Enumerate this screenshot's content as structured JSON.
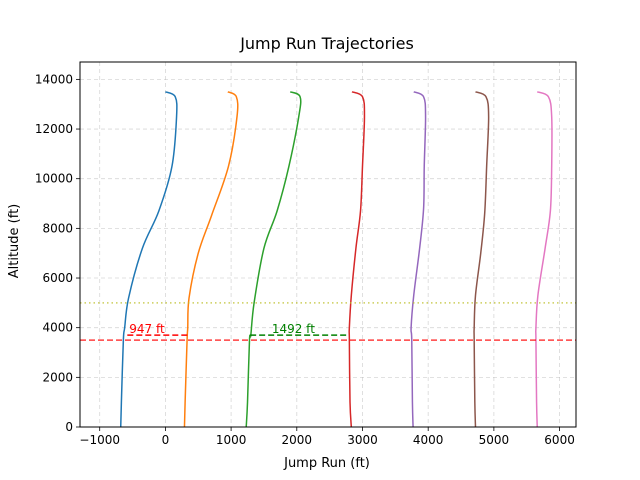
{
  "chart_data": {
    "type": "line",
    "title": "Jump Run Trajectories",
    "xlabel": "Jump Run (ft)",
    "ylabel": "Altitude (ft)",
    "xlim": [
      -1300,
      6250
    ],
    "ylim": [
      0,
      14700
    ],
    "xticks": [
      -1000,
      0,
      1000,
      2000,
      3000,
      4000,
      5000,
      6000
    ],
    "yticks": [
      0,
      2000,
      4000,
      6000,
      8000,
      10000,
      12000,
      14000
    ],
    "grid": true,
    "series": [
      {
        "color": "#1f77b4",
        "points": [
          [
            0,
            13500
          ],
          [
            150,
            13300
          ],
          [
            170,
            12500
          ],
          [
            100,
            10500
          ],
          [
            -100,
            8700
          ],
          [
            -350,
            7200
          ],
          [
            -560,
            5200
          ],
          [
            -620,
            4000
          ],
          [
            -640,
            3500
          ],
          [
            -670,
            1000
          ],
          [
            -680,
            0
          ]
        ]
      },
      {
        "color": "#ff7f0e",
        "points": [
          [
            950,
            13500
          ],
          [
            1080,
            13300
          ],
          [
            1090,
            12500
          ],
          [
            960,
            10500
          ],
          [
            700,
            8500
          ],
          [
            500,
            7000
          ],
          [
            360,
            5200
          ],
          [
            340,
            4000
          ],
          [
            330,
            3500
          ],
          [
            300,
            1000
          ],
          [
            290,
            0
          ]
        ]
      },
      {
        "color": "#2ca02c",
        "points": [
          [
            1900,
            13500
          ],
          [
            2050,
            13300
          ],
          [
            2030,
            12500
          ],
          [
            1880,
            10500
          ],
          [
            1700,
            8700
          ],
          [
            1500,
            7200
          ],
          [
            1350,
            5000
          ],
          [
            1300,
            3700
          ],
          [
            1280,
            3500
          ],
          [
            1250,
            1000
          ],
          [
            1230,
            0
          ]
        ]
      },
      {
        "color": "#d62728",
        "points": [
          [
            2840,
            13500
          ],
          [
            3000,
            13300
          ],
          [
            3030,
            12500
          ],
          [
            3000,
            10500
          ],
          [
            2970,
            8700
          ],
          [
            2900,
            7200
          ],
          [
            2830,
            5300
          ],
          [
            2800,
            4000
          ],
          [
            2800,
            3500
          ],
          [
            2810,
            1000
          ],
          [
            2830,
            0
          ]
        ]
      },
      {
        "color": "#9467bd",
        "points": [
          [
            3780,
            13500
          ],
          [
            3930,
            13300
          ],
          [
            3960,
            12500
          ],
          [
            3940,
            10500
          ],
          [
            3930,
            8800
          ],
          [
            3870,
            7200
          ],
          [
            3780,
            5300
          ],
          [
            3740,
            4000
          ],
          [
            3750,
            3500
          ],
          [
            3760,
            1000
          ],
          [
            3770,
            0
          ]
        ]
      },
      {
        "color": "#8c564b",
        "points": [
          [
            4720,
            13500
          ],
          [
            4880,
            13300
          ],
          [
            4920,
            12500
          ],
          [
            4890,
            10500
          ],
          [
            4860,
            8600
          ],
          [
            4800,
            7000
          ],
          [
            4720,
            5300
          ],
          [
            4700,
            4000
          ],
          [
            4700,
            3500
          ],
          [
            4710,
            1000
          ],
          [
            4720,
            0
          ]
        ]
      },
      {
        "color": "#e377c2",
        "points": [
          [
            5660,
            13500
          ],
          [
            5830,
            13300
          ],
          [
            5880,
            12500
          ],
          [
            5880,
            10500
          ],
          [
            5860,
            8700
          ],
          [
            5780,
            7200
          ],
          [
            5670,
            5300
          ],
          [
            5640,
            4000
          ],
          [
            5640,
            3500
          ],
          [
            5650,
            1000
          ],
          [
            5660,
            0
          ]
        ]
      }
    ],
    "hlines": [
      {
        "y": 5000,
        "color": "#bcbd22",
        "style": "dotted"
      },
      {
        "y": 3500,
        "color": "#ff0000",
        "style": "dashed"
      }
    ],
    "gaps": [
      {
        "x1": -580,
        "x2": 367,
        "y": 3700,
        "color": "#ff0000",
        "label": "947 ft",
        "label_x": -550,
        "label_y": 3780
      },
      {
        "x1": 1290,
        "x2": 2782,
        "y": 3700,
        "color": "#008000",
        "label": "1492 ft",
        "label_x": 1620,
        "label_y": 3780
      }
    ]
  }
}
